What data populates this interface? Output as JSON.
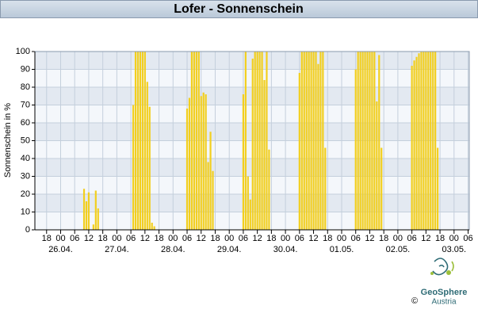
{
  "chart_data": {
    "type": "bar",
    "title": "Lofer - Sonnenschein",
    "y_label": "Sonnenschein in %",
    "x": [
      10,
      11,
      12,
      14,
      15,
      16,
      31,
      32,
      33,
      34,
      35,
      36,
      37,
      38,
      39,
      40,
      54,
      55,
      56,
      57,
      58,
      59,
      60,
      61,
      62,
      63,
      64,
      65,
      78,
      79,
      80,
      81,
      82,
      83,
      84,
      85,
      86,
      87,
      88,
      89,
      102,
      103,
      104,
      105,
      106,
      107,
      108,
      109,
      110,
      111,
      112,
      113,
      126,
      127,
      128,
      129,
      130,
      131,
      132,
      133,
      134,
      135,
      136,
      137,
      150,
      151,
      152,
      153,
      154,
      155,
      156,
      157,
      158,
      159,
      160,
      161
    ],
    "values": [
      23,
      16,
      21,
      3,
      22,
      12,
      70,
      100,
      100,
      100,
      100,
      100,
      83,
      69,
      4,
      2,
      68,
      74,
      100,
      100,
      100,
      100,
      75,
      77,
      76,
      38,
      55,
      33,
      76,
      100,
      30,
      17,
      96,
      100,
      100,
      100,
      100,
      84,
      100,
      45,
      88,
      100,
      100,
      100,
      100,
      100,
      100,
      100,
      93,
      100,
      100,
      46,
      90,
      100,
      100,
      100,
      100,
      100,
      100,
      100,
      100,
      72,
      98,
      46,
      92,
      95,
      97,
      99,
      100,
      100,
      100,
      100,
      100,
      100,
      100,
      46
    ],
    "color": "#f2cf1f",
    "xlim": [
      -11,
      174.5
    ],
    "xticks": [
      {
        "value": -6,
        "label": "18"
      },
      {
        "value": 0,
        "label": "00"
      },
      {
        "value": 6,
        "label": "06"
      },
      {
        "value": 12,
        "label": "12"
      },
      {
        "value": 18,
        "label": "18"
      },
      {
        "value": 24,
        "label": "00"
      },
      {
        "value": 30,
        "label": "06"
      },
      {
        "value": 36,
        "label": "12"
      },
      {
        "value": 42,
        "label": "18"
      },
      {
        "value": 48,
        "label": "00"
      },
      {
        "value": 54,
        "label": "06"
      },
      {
        "value": 60,
        "label": "12"
      },
      {
        "value": 66,
        "label": "18"
      },
      {
        "value": 72,
        "label": "00"
      },
      {
        "value": 78,
        "label": "06"
      },
      {
        "value": 84,
        "label": "12"
      },
      {
        "value": 90,
        "label": "18"
      },
      {
        "value": 96,
        "label": "00"
      },
      {
        "value": 102,
        "label": "06"
      },
      {
        "value": 108,
        "label": "12"
      },
      {
        "value": 114,
        "label": "18"
      },
      {
        "value": 120,
        "label": "00"
      },
      {
        "value": 126,
        "label": "06"
      },
      {
        "value": 132,
        "label": "12"
      },
      {
        "value": 138,
        "label": "18"
      },
      {
        "value": 144,
        "label": "00"
      },
      {
        "value": 150,
        "label": "06"
      },
      {
        "value": 156,
        "label": "12"
      },
      {
        "value": 162,
        "label": "18"
      },
      {
        "value": 168,
        "label": "00"
      },
      {
        "value": 174,
        "label": "06"
      }
    ],
    "date_ticks": [
      {
        "value": 0,
        "label": "26.04."
      },
      {
        "value": 24,
        "label": "27.04."
      },
      {
        "value": 48,
        "label": "28.04."
      },
      {
        "value": 72,
        "label": "29.04."
      },
      {
        "value": 96,
        "label": "30.04."
      },
      {
        "value": 120,
        "label": "01.05."
      },
      {
        "value": 144,
        "label": "02.05."
      },
      {
        "value": 168,
        "label": "03.05."
      }
    ],
    "ylim": [
      0,
      100
    ],
    "yticks": [
      0,
      10,
      20,
      30,
      40,
      50,
      60,
      70,
      80,
      90,
      100
    ],
    "grid": true
  },
  "footer": {
    "brand": "GeoSphere",
    "country": "Austria",
    "copyright": "©"
  }
}
